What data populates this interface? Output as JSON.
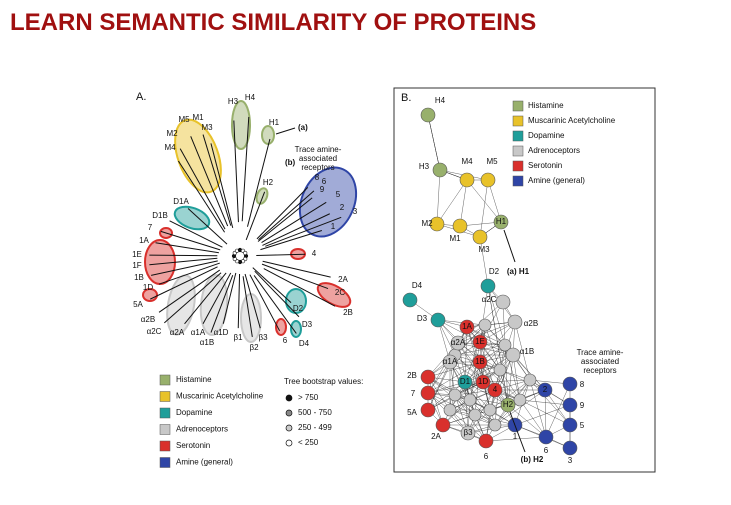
{
  "title": "LEARN SEMANTIC SIMILARITY OF PROTEINS",
  "panel_a": {
    "label": "A.",
    "tree_labels": [
      "H3",
      "H4",
      "H1",
      "H2",
      "M5",
      "M1",
      "M2",
      "M3",
      "M4",
      "D1A",
      "D1B",
      "7",
      "1A",
      "1E",
      "1F",
      "1B",
      "1D",
      "5A",
      "α2B",
      "α2C",
      "α2A",
      "α1A",
      "α1B",
      "α1D",
      "β1",
      "β2",
      "β3",
      "6",
      "D4",
      "D3",
      "D2",
      "2A",
      "2C",
      "2B",
      "4",
      "8",
      "6",
      "9",
      "5",
      "2",
      "3",
      "1"
    ],
    "annotations": [
      "(a)",
      "(b)"
    ],
    "taar_note": [
      "Trace amine-",
      "associated",
      "receptors"
    ],
    "legend": [
      {
        "label": "Histamine",
        "color": "#98b06c"
      },
      {
        "label": "Muscarinic Acetylcholine",
        "color": "#e8c22a"
      },
      {
        "label": "Dopamine",
        "color": "#1f9e9a"
      },
      {
        "label": "Adrenoceptors",
        "color": "#c8c8c8"
      },
      {
        "label": "Serotonin",
        "color": "#d9302c"
      },
      {
        "label": "Amine (general)",
        "color": "#2f45a6"
      }
    ],
    "bootstrap": {
      "title": "Tree bootstrap values:",
      "items": [
        "> 750",
        "500 - 750",
        "250 - 499",
        "< 250"
      ]
    }
  },
  "panel_b": {
    "label": "B.",
    "groups": [
      {
        "label": "Histamine",
        "color": "#98b06c",
        "nodes": [
          "H4",
          "H3",
          "H1",
          "H2"
        ]
      },
      {
        "label": "Muscarinic Acetylcholine",
        "color": "#e8c22a",
        "nodes": [
          "M4",
          "M5",
          "M2",
          "M1",
          "M3"
        ]
      },
      {
        "label": "Dopamine",
        "color": "#1f9e9a",
        "nodes": [
          "D2",
          "D4",
          "D3",
          "D1"
        ]
      },
      {
        "label": "Adrenoceptors",
        "color": "#c8c8c8",
        "nodes": [
          "α2C",
          "α2B",
          "α1B",
          "α2A",
          "β3",
          "α1A"
        ]
      },
      {
        "label": "Serotonin",
        "color": "#d9302c",
        "nodes": [
          "1A",
          "1E",
          "2B",
          "7",
          "5A",
          "2A",
          "6",
          "4",
          "1D",
          "1B"
        ]
      },
      {
        "label": "Amine (general)",
        "color": "#2f45a6",
        "nodes": [
          "8",
          "9",
          "5",
          "3",
          "1",
          "6",
          "2"
        ]
      }
    ],
    "annotations": [
      "(a) H1",
      "(b) H2"
    ],
    "taar_note": [
      "Trace amine-",
      "associated",
      "receptors"
    ]
  }
}
